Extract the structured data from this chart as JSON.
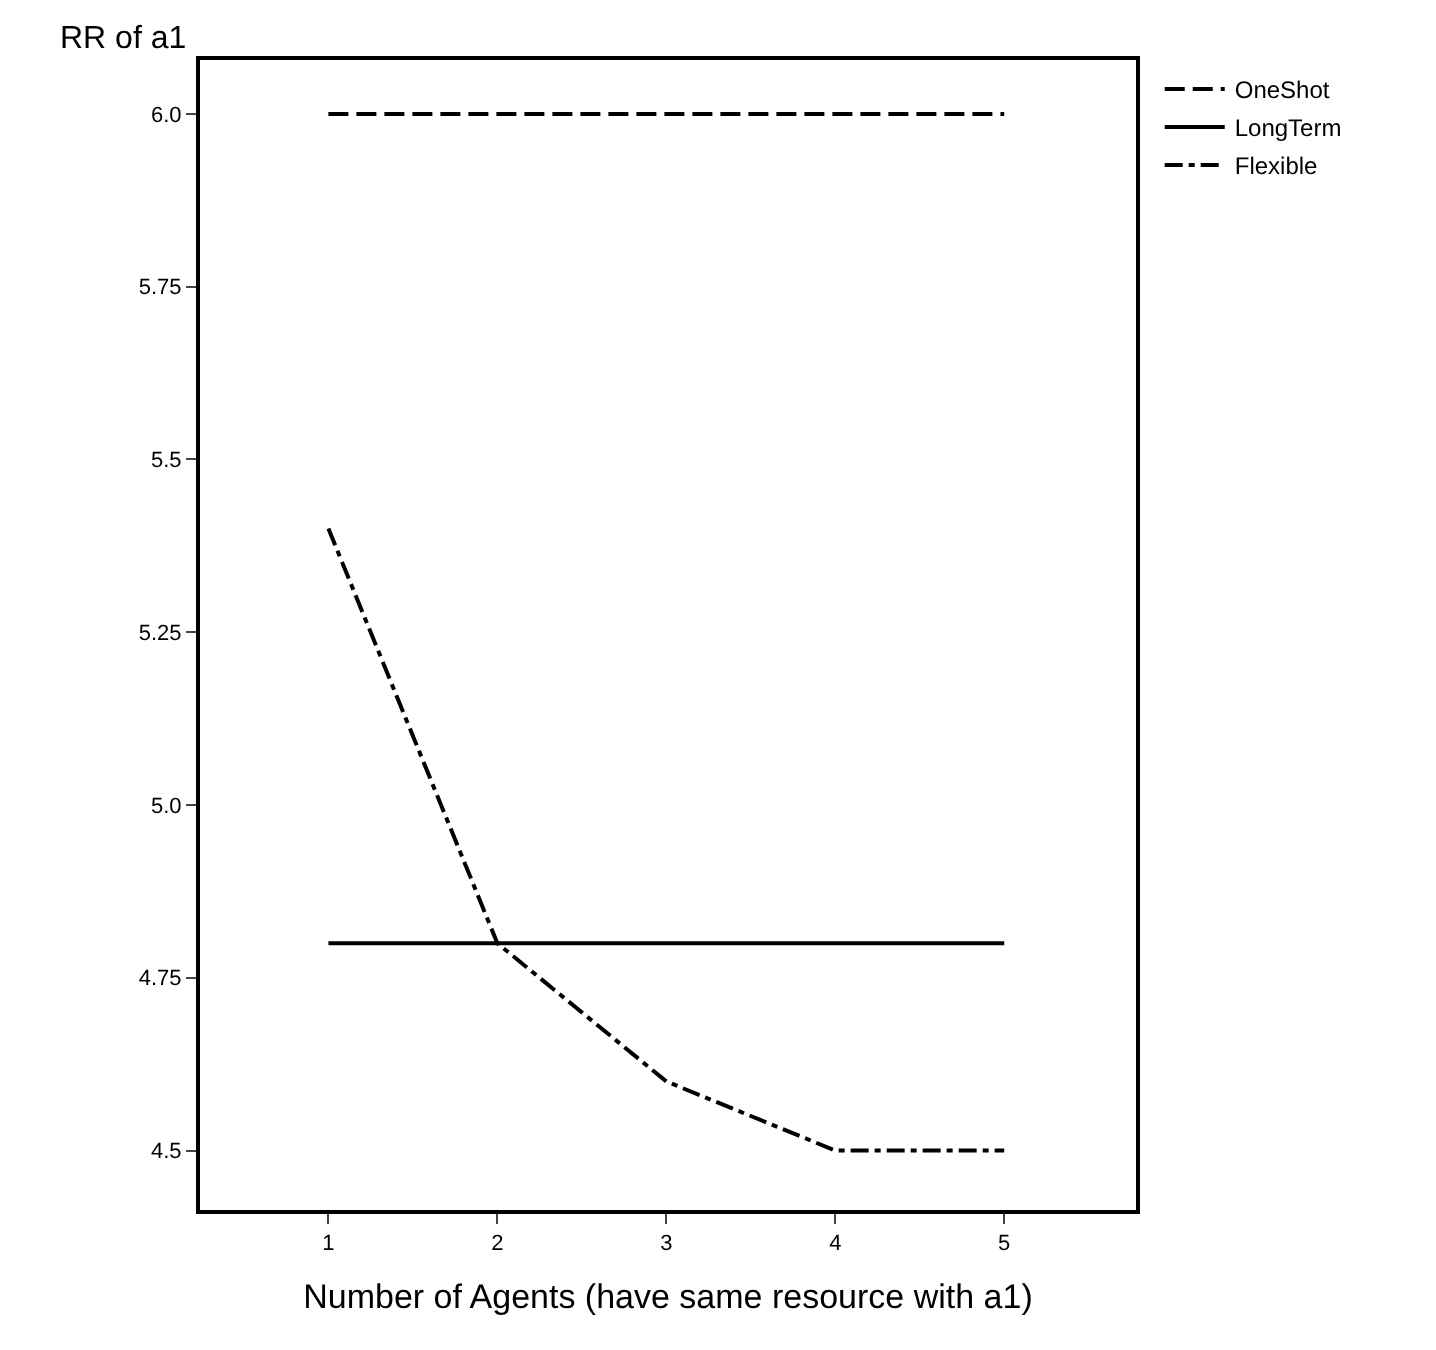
{
  "chart_data": {
    "type": "line",
    "xlabel": "Number of Agents (have same resource with a1)",
    "ylabel": "RR of a1",
    "x": [
      1,
      2,
      3,
      4,
      5
    ],
    "series": [
      {
        "name": "OneShot",
        "color": "#000000",
        "values": [
          6.0,
          6.0,
          6.0,
          6.0,
          6.0
        ],
        "line_style": "dashed"
      },
      {
        "name": "LongTerm",
        "color": "#000000",
        "values": [
          4.8,
          4.8,
          4.8,
          4.8,
          4.8
        ],
        "line_style": "solid"
      },
      {
        "name": "Flexible",
        "color": "#000000",
        "values": [
          5.4,
          4.8,
          4.6,
          4.5,
          4.5
        ],
        "line_style": "dashdot"
      }
    ],
    "xlim": [
      0.24,
      5.78
    ],
    "xticks": [
      1,
      2,
      3,
      4,
      5
    ],
    "ylim": [
      4.414,
      6.078
    ],
    "yticks": [
      {
        "value": 4.5,
        "label": "4.5"
      },
      4.75,
      {
        "value": 5.0,
        "label": "5.0"
      },
      5.25,
      {
        "value": 5.5,
        "label": "5.5"
      },
      5.75,
      {
        "value": 6.0,
        "label": "6.0"
      }
    ],
    "grid": false,
    "legend": "top right",
    "marker": "none"
  }
}
